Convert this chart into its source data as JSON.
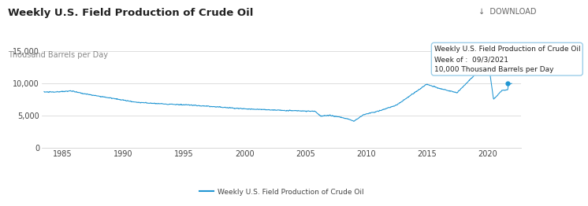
{
  "title": "Weekly U.S. Field Production of Crude Oil",
  "ylabel": "Thousand Barrels per Day",
  "download_text": "↓  DOWNLOAD",
  "legend_label": "Weekly U.S. Field Production of Crude Oil",
  "tooltip_title": "Weekly U.S. Field Production of Crude Oil",
  "tooltip_week": "Week of :  09/3/2021",
  "tooltip_value": "10,000 Thousand Barrels per Day",
  "ylim": [
    0,
    15000
  ],
  "yticks": [
    0,
    5000,
    10000,
    15000
  ],
  "ytick_labels": [
    "0",
    "5,000",
    "10,000",
    "15,000"
  ],
  "xticks": [
    1985,
    1990,
    1995,
    2000,
    2005,
    2010,
    2015,
    2020
  ],
  "xlim_left": 1983.3,
  "xlim_right": 2022.8,
  "line_color": "#2196d3",
  "background_color": "#ffffff",
  "grid_color": "#d0d0d0",
  "title_fontsize": 9.5,
  "ylabel_fontsize": 7,
  "tick_fontsize": 7,
  "legend_fontsize": 6.5,
  "download_fontsize": 7,
  "tooltip_fontsize": 6.5
}
